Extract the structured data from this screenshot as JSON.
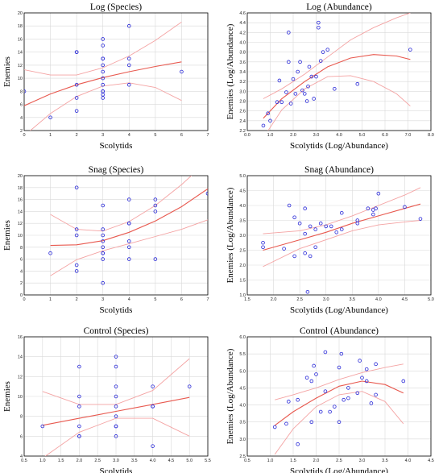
{
  "chart_data": [
    {
      "type": "scatter",
      "title": "Log (Species)",
      "xlabel": "Scolytids",
      "ylabel": "Enemies",
      "xlim": [
        0,
        7
      ],
      "ylim": [
        2,
        20
      ],
      "xticks": [
        0,
        1,
        2,
        3,
        4,
        5,
        6,
        7
      ],
      "yticks": [
        2,
        4,
        6,
        8,
        10,
        12,
        14,
        16,
        18,
        20
      ],
      "tick_decimals": 0,
      "grid": true,
      "points": [
        [
          0,
          8
        ],
        [
          1,
          4
        ],
        [
          2,
          5
        ],
        [
          2,
          7
        ],
        [
          2,
          9
        ],
        [
          2,
          14
        ],
        [
          2,
          14
        ],
        [
          3,
          7
        ],
        [
          3,
          7.5
        ],
        [
          3,
          8
        ],
        [
          3,
          8
        ],
        [
          3,
          9
        ],
        [
          3,
          10
        ],
        [
          3,
          11
        ],
        [
          3,
          12
        ],
        [
          3,
          13
        ],
        [
          3,
          13
        ],
        [
          3,
          15
        ],
        [
          3,
          16
        ],
        [
          4,
          9
        ],
        [
          4,
          12
        ],
        [
          4,
          13
        ],
        [
          4,
          18
        ],
        [
          6,
          11
        ]
      ],
      "fit": [
        [
          0,
          5.8
        ],
        [
          1,
          7.6
        ],
        [
          2,
          9.0
        ],
        [
          3,
          10.1
        ],
        [
          4,
          11.0
        ],
        [
          5,
          11.8
        ],
        [
          6,
          12.5
        ]
      ],
      "ci_upper": [
        [
          0,
          11.3
        ],
        [
          1,
          10.5
        ],
        [
          2,
          10.5
        ],
        [
          3,
          11.6
        ],
        [
          4,
          13.4
        ],
        [
          5,
          15.8
        ],
        [
          6,
          18.6
        ]
      ],
      "ci_lower": [
        [
          0,
          1.2
        ],
        [
          1,
          4.6
        ],
        [
          2,
          7.2
        ],
        [
          3,
          8.8
        ],
        [
          4,
          9.3
        ],
        [
          5,
          8.6
        ],
        [
          6,
          6.6
        ]
      ]
    },
    {
      "type": "scatter",
      "title": "Log (Abundance)",
      "xlabel": "Scolytids (Log/Abundance)",
      "ylabel": "Enemies (Log/Abundance)",
      "xlim": [
        0,
        8
      ],
      "ylim": [
        2.2,
        4.6
      ],
      "xticks": [
        0,
        1,
        2,
        3,
        4,
        5,
        6,
        7,
        8
      ],
      "yticks": [
        2.2,
        2.4,
        2.6,
        2.8,
        3.0,
        3.2,
        3.4,
        3.6,
        3.8,
        4.0,
        4.2,
        4.4,
        4.6
      ],
      "tick_decimals": 1,
      "grid": true,
      "points": [
        [
          0.7,
          2.3
        ],
        [
          0.9,
          2.55
        ],
        [
          1.0,
          2.4
        ],
        [
          1.3,
          2.78
        ],
        [
          1.5,
          2.78
        ],
        [
          1.7,
          2.98
        ],
        [
          1.8,
          3.6
        ],
        [
          1.8,
          4.2
        ],
        [
          1.9,
          2.75
        ],
        [
          2.0,
          3.25
        ],
        [
          2.1,
          2.95
        ],
        [
          2.2,
          3.4
        ],
        [
          2.3,
          3.6
        ],
        [
          2.5,
          2.95
        ],
        [
          2.6,
          2.8
        ],
        [
          2.7,
          3.5
        ],
        [
          2.8,
          3.3
        ],
        [
          2.9,
          2.85
        ],
        [
          3.0,
          3.3
        ],
        [
          3.1,
          4.3
        ],
        [
          3.1,
          4.4
        ],
        [
          3.2,
          3.62
        ],
        [
          3.3,
          3.8
        ],
        [
          3.5,
          3.85
        ],
        [
          3.8,
          3.05
        ],
        [
          4.8,
          3.15
        ],
        [
          7.1,
          3.85
        ],
        [
          1.4,
          3.22
        ],
        [
          2.4,
          3.02
        ],
        [
          2.65,
          3.1
        ]
      ],
      "fit": [
        [
          0.7,
          2.45
        ],
        [
          1.5,
          2.85
        ],
        [
          2.5,
          3.2
        ],
        [
          3.5,
          3.5
        ],
        [
          4.5,
          3.68
        ],
        [
          5.5,
          3.75
        ],
        [
          6.5,
          3.72
        ],
        [
          7.1,
          3.65
        ]
      ],
      "ci_upper": [
        [
          0.7,
          2.85
        ],
        [
          1.5,
          3.05
        ],
        [
          2.5,
          3.35
        ],
        [
          3.5,
          3.7
        ],
        [
          4.5,
          4.05
        ],
        [
          5.5,
          4.3
        ],
        [
          6.5,
          4.5
        ],
        [
          7.1,
          4.6
        ]
      ],
      "ci_lower": [
        [
          0.7,
          2.05
        ],
        [
          1.5,
          2.62
        ],
        [
          2.5,
          3.05
        ],
        [
          3.5,
          3.3
        ],
        [
          4.5,
          3.32
        ],
        [
          5.5,
          3.2
        ],
        [
          6.5,
          2.95
        ],
        [
          7.1,
          2.7
        ]
      ]
    },
    {
      "type": "scatter",
      "title": "Snag (Species)",
      "xlabel": "Scolytids",
      "ylabel": "Enemies",
      "xlim": [
        0,
        7
      ],
      "ylim": [
        0,
        20
      ],
      "xticks": [
        0,
        1,
        2,
        3,
        4,
        5,
        6,
        7
      ],
      "yticks": [
        0,
        2,
        4,
        6,
        8,
        10,
        12,
        14,
        16,
        18,
        20
      ],
      "tick_decimals": 0,
      "grid": true,
      "points": [
        [
          1,
          7
        ],
        [
          2,
          4
        ],
        [
          2,
          5
        ],
        [
          2,
          10
        ],
        [
          2,
          11
        ],
        [
          2,
          18
        ],
        [
          3,
          2
        ],
        [
          3,
          6
        ],
        [
          3,
          7
        ],
        [
          3,
          7
        ],
        [
          3,
          8
        ],
        [
          3,
          9
        ],
        [
          3,
          10
        ],
        [
          3,
          11
        ],
        [
          3,
          15
        ],
        [
          4,
          6
        ],
        [
          4,
          8
        ],
        [
          4,
          9
        ],
        [
          4,
          12
        ],
        [
          4,
          12
        ],
        [
          4,
          16
        ],
        [
          5,
          6
        ],
        [
          5,
          14
        ],
        [
          5,
          15
        ],
        [
          5,
          16
        ],
        [
          7,
          17
        ]
      ],
      "fit": [
        [
          1,
          8.3
        ],
        [
          2,
          8.4
        ],
        [
          3,
          9.1
        ],
        [
          4,
          10.5
        ],
        [
          5,
          12.4
        ],
        [
          6,
          14.8
        ],
        [
          7,
          17.8
        ]
      ],
      "ci_upper": [
        [
          1,
          13.5
        ],
        [
          2,
          11.0
        ],
        [
          3,
          10.7
        ],
        [
          4,
          12.3
        ],
        [
          5,
          15.0
        ],
        [
          6,
          18.5
        ],
        [
          7,
          22.5
        ]
      ],
      "ci_lower": [
        [
          1,
          3.2
        ],
        [
          2,
          5.9
        ],
        [
          3,
          7.4
        ],
        [
          4,
          8.6
        ],
        [
          5,
          9.8
        ],
        [
          6,
          11.0
        ],
        [
          7,
          12.6
        ]
      ]
    },
    {
      "type": "scatter",
      "title": "Snag (Abundance)",
      "xlabel": "Scolytids (Log/Abundance)",
      "ylabel": "Enemies (Log/Abundance)",
      "xlim": [
        1.5,
        5.0
      ],
      "ylim": [
        1.0,
        5.0
      ],
      "xticks": [
        1.5,
        2.0,
        2.5,
        3.0,
        3.5,
        4.0,
        4.5,
        5.0
      ],
      "yticks": [
        1.0,
        1.5,
        2.0,
        2.5,
        3.0,
        3.5,
        4.0,
        4.5,
        5.0
      ],
      "tick_decimals": 1,
      "grid": true,
      "points": [
        [
          1.8,
          2.6
        ],
        [
          1.8,
          2.75
        ],
        [
          2.2,
          2.55
        ],
        [
          2.3,
          4.0
        ],
        [
          2.4,
          3.6
        ],
        [
          2.4,
          2.3
        ],
        [
          2.5,
          3.4
        ],
        [
          2.6,
          3.9
        ],
        [
          2.6,
          3.05
        ],
        [
          2.6,
          2.4
        ],
        [
          2.65,
          1.1
        ],
        [
          2.7,
          3.3
        ],
        [
          2.7,
          2.3
        ],
        [
          2.8,
          3.2
        ],
        [
          2.8,
          2.6
        ],
        [
          2.9,
          3.4
        ],
        [
          3.0,
          3.3
        ],
        [
          3.1,
          3.3
        ],
        [
          3.2,
          3.1
        ],
        [
          3.3,
          3.75
        ],
        [
          3.3,
          3.2
        ],
        [
          3.6,
          3.4
        ],
        [
          3.6,
          3.5
        ],
        [
          3.8,
          3.9
        ],
        [
          3.9,
          3.85
        ],
        [
          3.9,
          3.7
        ],
        [
          3.95,
          3.9
        ],
        [
          4.0,
          4.4
        ],
        [
          4.5,
          3.95
        ],
        [
          4.8,
          3.55
        ]
      ],
      "fit": [
        [
          1.8,
          2.5
        ],
        [
          2.5,
          2.85
        ],
        [
          3.0,
          3.1
        ],
        [
          3.5,
          3.4
        ],
        [
          4.0,
          3.65
        ],
        [
          4.5,
          3.9
        ],
        [
          4.8,
          4.05
        ]
      ],
      "ci_upper": [
        [
          1.8,
          3.05
        ],
        [
          2.5,
          3.15
        ],
        [
          3.0,
          3.35
        ],
        [
          3.5,
          3.65
        ],
        [
          4.0,
          4.0
        ],
        [
          4.5,
          4.35
        ],
        [
          4.8,
          4.6
        ]
      ],
      "ci_lower": [
        [
          1.8,
          1.95
        ],
        [
          2.5,
          2.55
        ],
        [
          3.0,
          2.85
        ],
        [
          3.5,
          3.15
        ],
        [
          4.0,
          3.35
        ],
        [
          4.5,
          3.45
        ],
        [
          4.8,
          3.5
        ]
      ]
    },
    {
      "type": "scatter",
      "title": "Control (Species)",
      "xlabel": "Scolytids",
      "ylabel": "Enemies",
      "xlim": [
        0.5,
        5.5
      ],
      "ylim": [
        4,
        16
      ],
      "xticks": [
        0.5,
        1.0,
        1.5,
        2.0,
        2.5,
        3.0,
        3.5,
        4.0,
        4.5,
        5.0,
        5.5
      ],
      "yticks": [
        4,
        6,
        8,
        10,
        12,
        14,
        16
      ],
      "tick_decimals": 1,
      "tick_decimals_y": 0,
      "grid": true,
      "points": [
        [
          1,
          7
        ],
        [
          2,
          6
        ],
        [
          2,
          6
        ],
        [
          2,
          7
        ],
        [
          2,
          9
        ],
        [
          2,
          10
        ],
        [
          2,
          13
        ],
        [
          3,
          6
        ],
        [
          3,
          7
        ],
        [
          3,
          7
        ],
        [
          3,
          8
        ],
        [
          3,
          9
        ],
        [
          3,
          10
        ],
        [
          3,
          11
        ],
        [
          3,
          13
        ],
        [
          3,
          14
        ],
        [
          4,
          5
        ],
        [
          4,
          9
        ],
        [
          4,
          9
        ],
        [
          4,
          11
        ],
        [
          5,
          11
        ]
      ],
      "fit": [
        [
          1,
          7.1
        ],
        [
          2,
          7.8
        ],
        [
          3,
          8.5
        ],
        [
          4,
          9.2
        ],
        [
          5,
          9.9
        ]
      ],
      "ci_upper": [
        [
          1,
          10.5
        ],
        [
          2,
          9.2
        ],
        [
          3,
          9.2
        ],
        [
          4,
          10.6
        ],
        [
          5,
          13.8
        ]
      ],
      "ci_lower": [
        [
          1,
          3.8
        ],
        [
          2,
          6.4
        ],
        [
          3,
          7.8
        ],
        [
          4,
          7.8
        ],
        [
          5,
          6.0
        ]
      ]
    },
    {
      "type": "scatter",
      "title": "Control (Abundance)",
      "xlabel": "Scolytids (Log/Abundance)",
      "ylabel": "Enemies (Log/Abundance)",
      "xlim": [
        0.5,
        4.5
      ],
      "ylim": [
        2.5,
        6.0
      ],
      "xticks": [
        0.5,
        1.0,
        1.5,
        2.0,
        2.5,
        3.0,
        3.5,
        4.0,
        4.5
      ],
      "yticks": [
        2.5,
        3.0,
        3.5,
        4.0,
        4.5,
        5.0,
        5.5,
        6.0
      ],
      "tick_decimals": 1,
      "grid": true,
      "points": [
        [
          1.1,
          3.35
        ],
        [
          1.35,
          3.45
        ],
        [
          1.4,
          4.1
        ],
        [
          1.6,
          2.85
        ],
        [
          1.8,
          4.8
        ],
        [
          1.9,
          3.5
        ],
        [
          1.9,
          4.7
        ],
        [
          1.95,
          5.15
        ],
        [
          2.0,
          4.9
        ],
        [
          2.1,
          3.8
        ],
        [
          2.2,
          5.55
        ],
        [
          2.2,
          4.4
        ],
        [
          2.3,
          3.8
        ],
        [
          2.4,
          3.95
        ],
        [
          2.5,
          5.1
        ],
        [
          2.55,
          5.5
        ],
        [
          2.6,
          4.15
        ],
        [
          2.7,
          4.2
        ],
        [
          2.7,
          4.5
        ],
        [
          2.9,
          4.35
        ],
        [
          2.95,
          5.3
        ],
        [
          3.0,
          4.8
        ],
        [
          3.1,
          4.7
        ],
        [
          3.2,
          4.05
        ],
        [
          3.3,
          4.3
        ],
        [
          3.3,
          5.2
        ],
        [
          3.9,
          4.7
        ],
        [
          2.5,
          3.5
        ],
        [
          3.1,
          5.05
        ],
        [
          1.6,
          4.15
        ]
      ],
      "fit": [
        [
          1.1,
          3.4
        ],
        [
          1.5,
          3.8
        ],
        [
          2.0,
          4.2
        ],
        [
          2.5,
          4.55
        ],
        [
          3.0,
          4.7
        ],
        [
          3.5,
          4.6
        ],
        [
          3.9,
          4.35
        ]
      ],
      "ci_upper": [
        [
          1.1,
          4.15
        ],
        [
          1.5,
          4.3
        ],
        [
          2.0,
          4.5
        ],
        [
          2.5,
          4.75
        ],
        [
          3.0,
          4.95
        ],
        [
          3.5,
          5.1
        ],
        [
          3.9,
          5.2
        ]
      ],
      "ci_lower": [
        [
          1.1,
          2.55
        ],
        [
          1.5,
          3.3
        ],
        [
          2.0,
          3.95
        ],
        [
          2.5,
          4.3
        ],
        [
          3.0,
          4.4
        ],
        [
          3.5,
          4.1
        ],
        [
          3.9,
          3.45
        ]
      ]
    }
  ]
}
